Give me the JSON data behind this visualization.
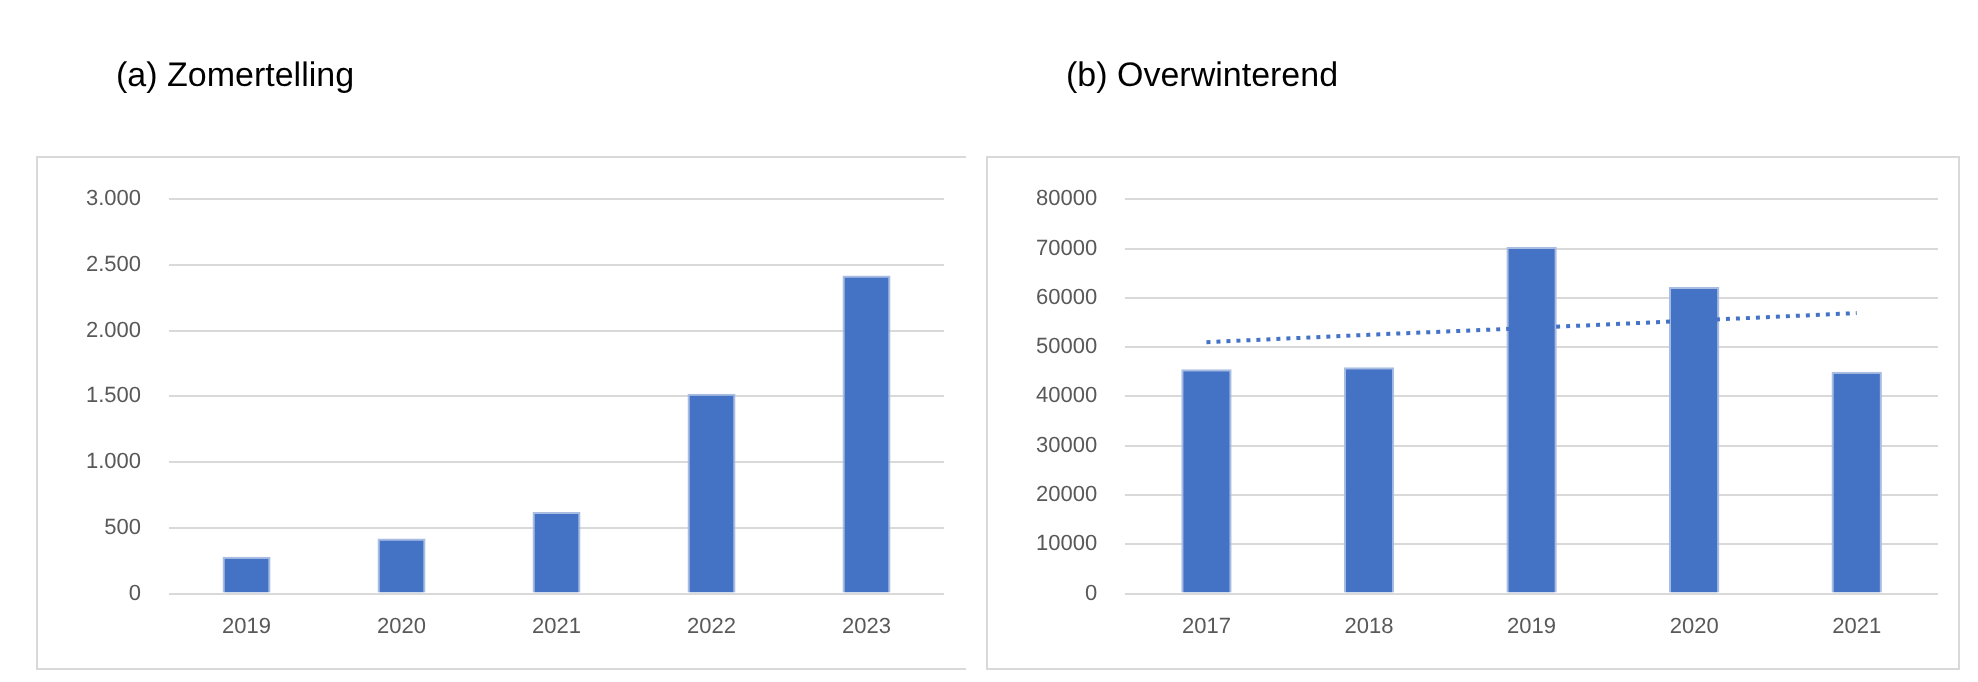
{
  "chart_data": [
    {
      "type": "bar",
      "title": "(a)  Zomertelling",
      "categories": [
        "2019",
        "2020",
        "2021",
        "2022",
        "2023"
      ],
      "series": [
        {
          "color": "#4472c4",
          "values": [
            280,
            420,
            620,
            1520,
            2420
          ]
        }
      ],
      "ylim": [
        0,
        3000
      ],
      "yticks": [
        {
          "value": 0,
          "label": "0"
        },
        {
          "value": 500,
          "label": "500"
        },
        {
          "value": 1000,
          "label": "1.000"
        },
        {
          "value": 1500,
          "label": "1.500"
        },
        {
          "value": 2000,
          "label": "2.000"
        },
        {
          "value": 2500,
          "label": "2.500"
        },
        {
          "value": 3000,
          "label": "3.000"
        }
      ],
      "grid": "y",
      "legend": false
    },
    {
      "type": "bar",
      "title": "(b) Overwinterend",
      "categories": [
        "2017",
        "2018",
        "2019",
        "2020",
        "2021"
      ],
      "series": [
        {
          "color": "#4472c4",
          "values": [
            45500,
            45900,
            70300,
            62200,
            45000
          ]
        },
        {
          "type": "line",
          "color": "#4472c4",
          "values": [
            51000,
            52500,
            53900,
            55400,
            56900
          ],
          "line_style": "dotted",
          "marker": "none"
        }
      ],
      "ylim": [
        0,
        80000
      ],
      "yticks": [
        0,
        10000,
        20000,
        30000,
        40000,
        50000,
        60000,
        70000,
        80000
      ],
      "grid": "y",
      "legend": false
    }
  ]
}
